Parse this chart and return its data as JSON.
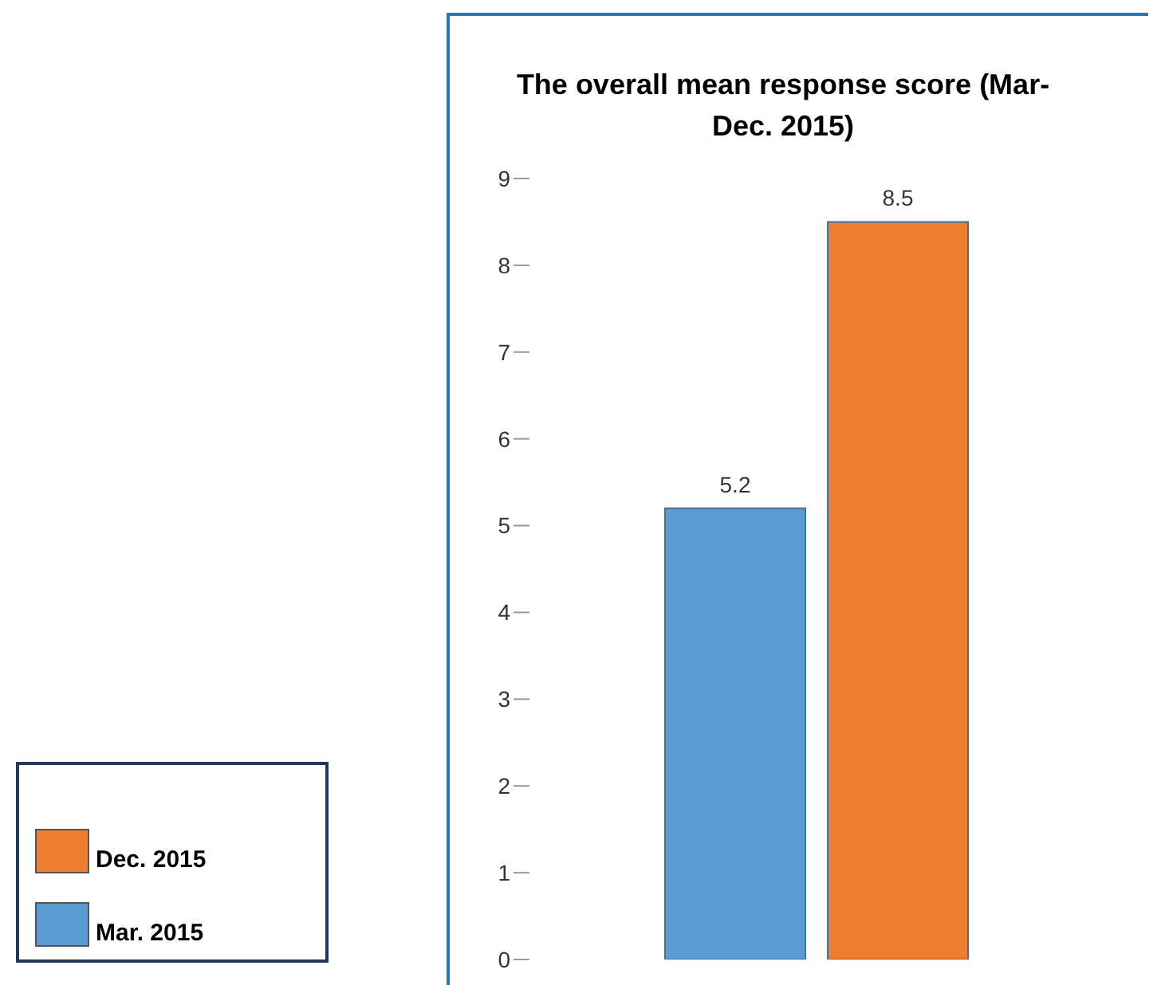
{
  "chart_data": {
    "type": "bar",
    "title": "The overall mean response score (Mar-Dec. 2015)",
    "categories": [
      null
    ],
    "series": [
      {
        "name": "Mar. 2015",
        "color": "#5b9bd5",
        "values": [
          5.2
        ]
      },
      {
        "name": "Dec. 2015",
        "color": "#ed7d31",
        "values": [
          8.5
        ]
      }
    ],
    "ylim": [
      0,
      9
    ],
    "yticks": [
      0,
      1,
      2,
      3,
      4,
      5,
      6,
      7,
      8,
      9
    ],
    "grid": false,
    "legend": "bottom left",
    "data_labels": true
  }
}
